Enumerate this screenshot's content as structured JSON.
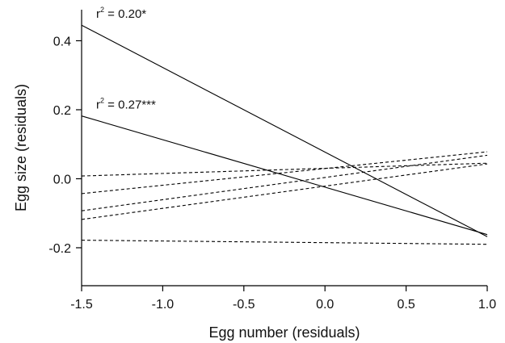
{
  "chart_data": {
    "type": "line",
    "xlabel": "Egg number (residuals)",
    "ylabel": "Egg size (residuals)",
    "xlim": [
      -1.5,
      1.0
    ],
    "ylim": [
      -0.31,
      0.49
    ],
    "x_ticks": [
      -1.5,
      -1.0,
      -0.5,
      0.0,
      0.5,
      1.0
    ],
    "x_tick_labels": [
      "-1.5",
      "-1.0",
      "-0.5",
      "0.0",
      "0.5",
      "1.0"
    ],
    "y_ticks": [
      -0.2,
      0.0,
      0.2,
      0.4
    ],
    "y_tick_labels": [
      "-0.2",
      "0.0",
      "0.2",
      "0.4"
    ],
    "grid": false,
    "legend": "none",
    "series": [
      {
        "style": "solid",
        "x": [
          -1.5,
          1.0
        ],
        "y": [
          0.445,
          -0.168
        ],
        "annotation": {
          "prefix": "r",
          "sup": "2",
          "text": " = 0.20*"
        }
      },
      {
        "style": "solid",
        "x": [
          -1.5,
          1.0
        ],
        "y": [
          0.182,
          -0.162
        ],
        "annotation": {
          "prefix": "r",
          "sup": "2",
          "text": " = 0.27***"
        }
      },
      {
        "style": "dashed",
        "x": [
          -1.5,
          1.0
        ],
        "y": [
          0.008,
          0.045
        ]
      },
      {
        "style": "dashed",
        "x": [
          -1.5,
          1.0
        ],
        "y": [
          -0.043,
          0.078
        ]
      },
      {
        "style": "dashed",
        "x": [
          -1.5,
          1.0
        ],
        "y": [
          -0.093,
          0.068
        ]
      },
      {
        "style": "dashed",
        "x": [
          -1.5,
          1.0
        ],
        "y": [
          -0.118,
          0.043
        ]
      },
      {
        "style": "dashed",
        "x": [
          -1.5,
          1.0
        ],
        "y": [
          -0.178,
          -0.19
        ]
      }
    ]
  }
}
